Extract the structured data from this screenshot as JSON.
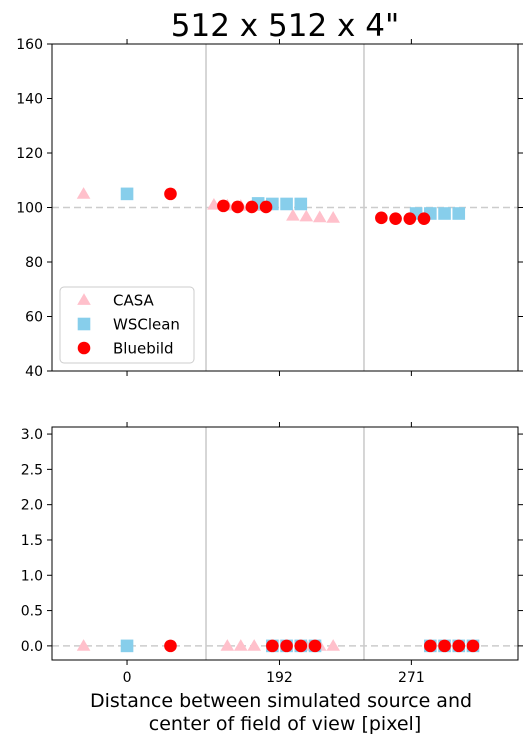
{
  "chart_data": {
    "type": "scatter",
    "title": "512 x 512 x 4\"",
    "xlabel_lines": [
      "Distance between simulated source and",
      "center of field of view [pixel]"
    ],
    "categories": [
      "0",
      "192",
      "271"
    ],
    "legend_placement": "lower-left",
    "series_style": [
      {
        "name": "CASA",
        "marker": "triangle",
        "color": "#ffc0cb"
      },
      {
        "name": "WSClean",
        "marker": "square",
        "color": "#87ceeb"
      },
      {
        "name": "Bluebild",
        "marker": "circle",
        "color": "#ff0000"
      }
    ],
    "panels": [
      {
        "ylim": [
          40,
          160
        ],
        "yticks": [
          "40",
          "60",
          "80",
          "100",
          "120",
          "140",
          "160"
        ],
        "reference_line": 100,
        "show_legend": true,
        "series": [
          {
            "name": "CASA",
            "x": [
              -0.55,
              1.1,
              1.27,
              1.44,
              1.61,
              2.1,
              2.27,
              2.44,
              2.61
            ],
            "y": [
              105,
              101,
              100.7,
              100.6,
              100.5,
              97,
              96.7,
              96.4,
              96.2
            ]
          },
          {
            "name": "WSClean",
            "x": [
              0,
              1.66,
              1.84,
              2.02,
              2.2,
              3.66,
              3.84,
              4.02,
              4.2
            ],
            "y": [
              105,
              101.5,
              101.3,
              101.3,
              101.3,
              97.8,
              97.8,
              97.8,
              97.8
            ]
          },
          {
            "name": "Bluebild",
            "x": [
              0.55,
              1.22,
              1.4,
              1.58,
              1.76,
              3.22,
              3.4,
              3.58,
              3.76
            ],
            "y": [
              105,
              100.6,
              100.2,
              100.2,
              100.2,
              96.2,
              95.9,
              95.9,
              95.9
            ]
          }
        ]
      },
      {
        "ylim": [
          -0.2,
          3.1
        ],
        "yticks": [
          "0.0",
          "0.5",
          "1.0",
          "1.5",
          "2.0",
          "2.5",
          "3.0"
        ],
        "reference_line": 0,
        "show_legend": false,
        "series": [
          {
            "name": "CASA",
            "x": [
              -0.55,
              1.27,
              1.44,
              1.61,
              2.27,
              2.44,
              2.61
            ],
            "y": [
              0,
              0,
              0,
              0,
              0,
              0,
              0
            ]
          },
          {
            "name": "WSClean",
            "x": [
              0,
              1.84,
              2.02,
              2.2,
              2.38,
              3.84,
              4.02,
              4.2,
              4.38
            ],
            "y": [
              0,
              0,
              0,
              0,
              0,
              0,
              0,
              0,
              0
            ]
          },
          {
            "name": "Bluebild",
            "x": [
              0.55,
              1.84,
              2.02,
              2.2,
              2.38,
              3.84,
              4.02,
              4.2,
              4.38
            ],
            "y": [
              0,
              0,
              0,
              0,
              0,
              0,
              0,
              0,
              0
            ]
          }
        ]
      }
    ]
  }
}
